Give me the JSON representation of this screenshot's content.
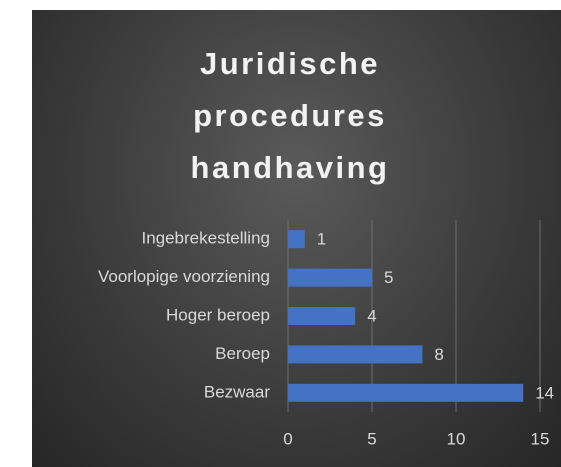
{
  "chart_data": {
    "type": "barh",
    "title": "Juridische procedures handhaving",
    "categories": [
      "Ingebrekestelling",
      "Voorlopige voorziening",
      "Hoger beroep",
      "Beroep",
      "Bezwaar"
    ],
    "values": [
      1,
      5,
      4,
      8,
      14
    ],
    "color": "#4472c4",
    "xlim": [
      0,
      15
    ],
    "xticks": [
      0,
      5,
      10,
      15
    ],
    "grid": true
  }
}
